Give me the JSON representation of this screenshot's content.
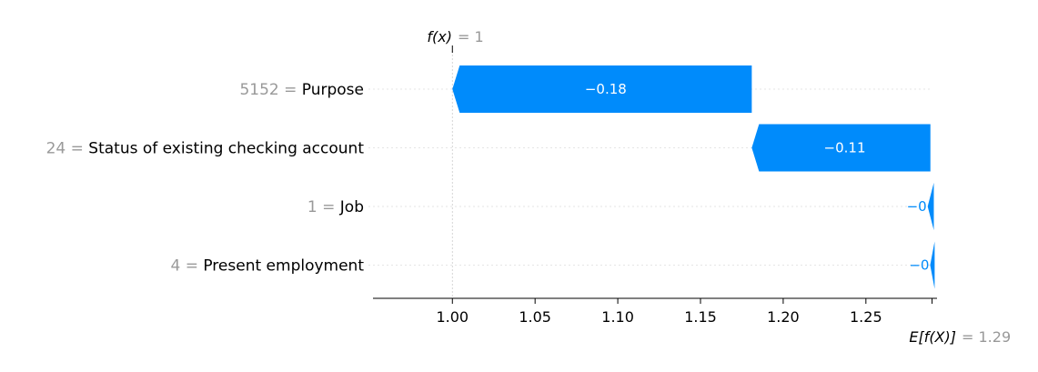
{
  "chart_data": {
    "type": "waterfall",
    "title": "",
    "xlabel": "",
    "ylabel": "",
    "xlim": [
      0.952,
      1.293
    ],
    "fx": {
      "label": "f(x)",
      "value_text": "= 1",
      "value": 1.0
    },
    "expected": {
      "label": "E[f(X)]",
      "value_text": "= 1.29",
      "value": 1.29
    },
    "features": [
      {
        "value": "5152",
        "name": "Purpose",
        "contribution": -0.18,
        "label": "−0.18",
        "start": 1.181,
        "end": 1.0
      },
      {
        "value": "24",
        "name": "Status of existing checking account",
        "contribution": -0.11,
        "label": "−0.11",
        "start": 1.289,
        "end": 1.181
      },
      {
        "value": "1",
        "name": "Job",
        "contribution": -0.001,
        "label": "−0",
        "start": 1.2905,
        "end": 1.289
      },
      {
        "value": "4",
        "name": "Present employment",
        "contribution": -0.0005,
        "label": "−0",
        "start": 1.291,
        "end": 1.2905
      }
    ],
    "x_ticks": [
      {
        "value": 1.0,
        "label": "1.00"
      },
      {
        "value": 1.05,
        "label": "1.05"
      },
      {
        "value": 1.1,
        "label": "1.10"
      },
      {
        "value": 1.15,
        "label": "1.15"
      },
      {
        "value": 1.2,
        "label": "1.20"
      },
      {
        "value": 1.25,
        "label": "1.25"
      }
    ],
    "colors": {
      "negative": "#008bfb",
      "feature_value": "#999999",
      "text": "#000000",
      "grid": "#cccccc"
    },
    "grid": true
  }
}
